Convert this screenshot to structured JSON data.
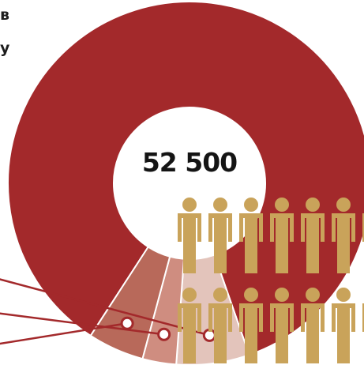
{
  "headline_fragments": [
    "в",
    "у"
  ],
  "total_label": "52 500",
  "colors": {
    "main": "#a3292b",
    "light": "#e3c4bb",
    "mid": "#cf8d80",
    "dark": "#b8695a",
    "people": "#c9a35a",
    "leader": "#a3292b"
  },
  "people_icons": {
    "rows": 2,
    "per_row": 7,
    "icon": "person-icon"
  },
  "chart_data": {
    "type": "pie",
    "variant": "donut",
    "categories": [
      "",
      "",
      "",
      ""
    ],
    "values": [
      85.5,
      6.5,
      3.0,
      5.0
    ],
    "colors": [
      "#a3292b",
      "#e3c4bb",
      "#cf8d80",
      "#b8695a"
    ],
    "center_label": "52 500",
    "title": "",
    "legend": "none"
  }
}
